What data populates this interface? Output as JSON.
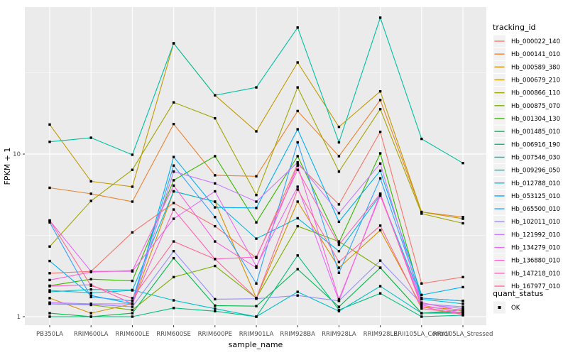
{
  "chart_data": {
    "type": "line",
    "title": "",
    "xlabel": "sample_name",
    "ylabel": "FPKM + 1",
    "y_scale": "log10",
    "y_tick_labels": [
      "1",
      "10"
    ],
    "y_ticks": [
      1,
      10
    ],
    "y_minor_ticks": [
      3.162,
      31.62
    ],
    "ylim": [
      0.85,
      80
    ],
    "grid": true,
    "legend_position": "right",
    "categories": [
      "PB350LA",
      "RRIM600LA",
      "RRIM600LE",
      "RRIM600SE",
      "RRIM600PE",
      "RRIM901LA",
      "RRIM928BA",
      "RRIM928LA",
      "RRIM928LE",
      "RRII105LA_Control",
      "RRII105LA_Stressed"
    ],
    "series": [
      {
        "tracking_id": "Hb_000022_140",
        "color": "#F8766D",
        "values": [
          1.85,
          1.9,
          3.3,
          5.0,
          3.6,
          2.3,
          8.7,
          4.9,
          13.7,
          1.6,
          1.75
        ]
      },
      {
        "tracking_id": "Hb_000141_010",
        "color": "#EA8331",
        "values": [
          6.2,
          5.7,
          5.1,
          15.3,
          7.4,
          7.3,
          18.4,
          9.7,
          21.5,
          4.4,
          4.1
        ]
      },
      {
        "tracking_id": "Hb_000589_380",
        "color": "#D89000",
        "values": [
          1.3,
          1.05,
          1.2,
          5.9,
          5.1,
          1.3,
          5.1,
          2.0,
          3.4,
          1.15,
          1.1
        ]
      },
      {
        "tracking_id": "Hb_000679_210",
        "color": "#C09B00",
        "values": [
          15.2,
          6.8,
          6.3,
          48.0,
          23.0,
          13.8,
          36.6,
          14.7,
          24.3,
          4.4,
          4.0
        ]
      },
      {
        "tracking_id": "Hb_000866_110",
        "color": "#A3A500",
        "values": [
          2.7,
          5.15,
          8.0,
          20.8,
          16.6,
          5.6,
          25.7,
          7.8,
          18.9,
          4.3,
          3.75
        ]
      },
      {
        "tracking_id": "Hb_000875_070",
        "color": "#7CAE00",
        "values": [
          1.2,
          1.18,
          1.1,
          1.75,
          2.05,
          1.3,
          3.6,
          2.9,
          2.0,
          1.05,
          1.1
        ]
      },
      {
        "tracking_id": "Hb_001304_130",
        "color": "#39B600",
        "values": [
          1.55,
          1.7,
          1.66,
          6.9,
          9.7,
          3.8,
          9.7,
          2.86,
          10.1,
          1.3,
          1.25
        ]
      },
      {
        "tracking_id": "Hb_001485_010",
        "color": "#00BB4E",
        "values": [
          1.05,
          1.0,
          1.05,
          2.29,
          1.17,
          1.16,
          1.96,
          1.15,
          2.0,
          1.05,
          1.07
        ]
      },
      {
        "tracking_id": "Hb_006916_190",
        "color": "#00BF7D",
        "values": [
          1.0,
          1.0,
          1.0,
          1.13,
          1.08,
          1.0,
          2.38,
          1.1,
          1.39,
          1.0,
          1.02
        ]
      },
      {
        "tracking_id": "Hb_007546_030",
        "color": "#00C1A3",
        "values": [
          11.9,
          12.6,
          9.9,
          48.0,
          23.0,
          25.7,
          60.0,
          11.8,
          69.0,
          12.4,
          8.8
        ]
      },
      {
        "tracking_id": "Hb_009296_050",
        "color": "#00BFC4",
        "values": [
          1.42,
          1.47,
          1.46,
          1.26,
          1.12,
          1.0,
          1.42,
          1.08,
          1.54,
          1.05,
          1.05
        ]
      },
      {
        "tracking_id": "Hb_012788_010",
        "color": "#00BAE0",
        "values": [
          1.45,
          1.4,
          1.45,
          5.9,
          5.1,
          3.02,
          4.03,
          2.53,
          5.6,
          1.28,
          1.2
        ]
      },
      {
        "tracking_id": "Hb_053125_010",
        "color": "#00B0F6",
        "values": [
          2.2,
          1.35,
          1.2,
          9.6,
          4.7,
          4.66,
          14.2,
          3.83,
          7.9,
          1.36,
          1.52
        ]
      },
      {
        "tracking_id": "Hb_065500_010",
        "color": "#35A2FF",
        "values": [
          3.8,
          1.32,
          1.25,
          8.5,
          4.1,
          1.6,
          11.8,
          1.86,
          7.1,
          1.3,
          1.25
        ]
      },
      {
        "tracking_id": "Hb_102011_010",
        "color": "#9590FF",
        "values": [
          1.2,
          1.19,
          1.15,
          2.53,
          1.28,
          1.29,
          1.35,
          1.25,
          2.21,
          1.2,
          1.15
        ]
      },
      {
        "tracking_id": "Hb_121992_010",
        "color": "#C77CFF",
        "values": [
          1.22,
          1.2,
          1.2,
          7.8,
          6.6,
          5.1,
          8.9,
          4.33,
          8.75,
          1.2,
          1.12
        ]
      },
      {
        "tracking_id": "Hb_134279_010",
        "color": "#E76BF3",
        "values": [
          3.9,
          1.9,
          1.9,
          4.0,
          5.9,
          2.04,
          6.3,
          1.25,
          5.7,
          1.18,
          1.05
        ]
      },
      {
        "tracking_id": "Hb_136880_010",
        "color": "#FA62DB",
        "values": [
          1.68,
          1.88,
          1.92,
          6.4,
          2.9,
          2.0,
          8.5,
          1.28,
          5.55,
          1.22,
          1.08
        ]
      },
      {
        "tracking_id": "Hb_147218_010",
        "color": "#FF62BC",
        "values": [
          1.54,
          1.57,
          1.2,
          4.56,
          2.26,
          2.33,
          8.0,
          2.77,
          5.7,
          1.15,
          1.03
        ]
      },
      {
        "tracking_id": "Hb_167977_010",
        "color": "#FF6A98",
        "values": [
          3.9,
          1.55,
          1.3,
          2.9,
          2.26,
          1.3,
          6.05,
          2.17,
          3.63,
          1.12,
          1.05
        ]
      }
    ],
    "legend": {
      "color_legend_title": "tracking_id",
      "shape_legend_title": "quant_status",
      "shape_items": [
        {
          "label": "OK",
          "marker": "black-square"
        }
      ]
    }
  },
  "colors": {
    "panel_background": "#EBEBEB",
    "gridline": "#FFFFFF",
    "legend_key_background": "#F2F2F2",
    "point_marker": "#000000",
    "tick_label": "#4D4D4D"
  }
}
